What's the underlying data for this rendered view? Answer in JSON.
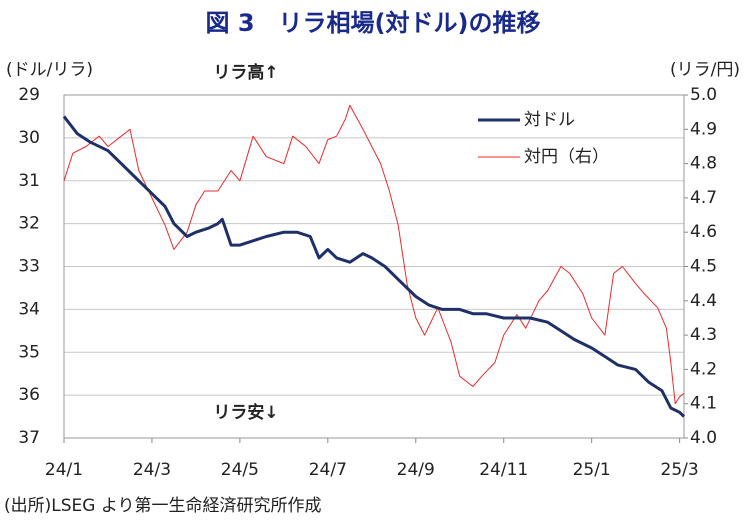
{
  "chart_data": {
    "type": "line",
    "title": "図 3　リラ相場(対ドル)の推移",
    "ylabel": "(ドル/リラ)",
    "y2label": "(リラ/円)",
    "annotations": [
      "リラ高↑",
      "リラ安↓"
    ],
    "source": "(出所)LSEG より第一生命経済研究所作成",
    "xlim": [
      0,
      14.1
    ],
    "xticks": [
      {
        "value": 0,
        "label": "24/1"
      },
      {
        "value": 2,
        "label": "24/3"
      },
      {
        "value": 4,
        "label": "24/5"
      },
      {
        "value": 6,
        "label": "24/7"
      },
      {
        "value": 8,
        "label": "24/9"
      },
      {
        "value": 10,
        "label": "24/11"
      },
      {
        "value": 12,
        "label": "25/1"
      },
      {
        "value": 14,
        "label": "25/3"
      }
    ],
    "ylim": [
      29,
      37
    ],
    "y_inverted": true,
    "yticks": [
      29,
      30,
      31,
      32,
      33,
      34,
      35,
      36,
      37
    ],
    "y2lim": [
      4.0,
      5.0
    ],
    "y2ticks": [
      {
        "value": 4.0,
        "label": "4.0"
      },
      4.1,
      4.2,
      4.3,
      4.4,
      4.5,
      4.6,
      4.7,
      4.8,
      4.9,
      {
        "value": 5.0,
        "label": "5.0"
      }
    ],
    "grid": true,
    "series": [
      {
        "name": "対ドル",
        "color": "#1f3068",
        "width": 3,
        "x": [
          0,
          0.3,
          0.6,
          1,
          1.3,
          1.6,
          2,
          2.3,
          2.5,
          2.8,
          3,
          3.3,
          3.5,
          3.6,
          3.8,
          4,
          4.3,
          4.6,
          5,
          5.3,
          5.6,
          5.8,
          6,
          6.2,
          6.5,
          6.8,
          7,
          7.3,
          7.6,
          8,
          8.3,
          8.6,
          9,
          9.3,
          9.6,
          10,
          10.3,
          10.6,
          11,
          11.3,
          11.6,
          12,
          12.3,
          12.6,
          13,
          13.3,
          13.6,
          13.8,
          14,
          14.1
        ],
        "values": [
          29.5,
          29.9,
          30.1,
          30.3,
          30.6,
          30.9,
          31.3,
          31.6,
          32.0,
          32.3,
          32.2,
          32.1,
          32.0,
          31.9,
          32.5,
          32.5,
          32.4,
          32.3,
          32.2,
          32.2,
          32.3,
          32.8,
          32.6,
          32.8,
          32.9,
          32.7,
          32.8,
          33.0,
          33.3,
          33.7,
          33.9,
          34.0,
          34.0,
          34.1,
          34.1,
          34.2,
          34.2,
          34.2,
          34.3,
          34.5,
          34.7,
          34.9,
          35.1,
          35.3,
          35.4,
          35.7,
          35.9,
          36.3,
          36.4,
          36.5
        ]
      },
      {
        "name": "対円（右）",
        "color": "#ee2a2a",
        "width": 1,
        "axis": "y2",
        "x": [
          0,
          0.2,
          0.5,
          0.8,
          1,
          1.3,
          1.5,
          1.7,
          2,
          2.3,
          2.5,
          2.8,
          3,
          3.2,
          3.5,
          3.8,
          4,
          4.3,
          4.6,
          5,
          5.2,
          5.5,
          5.8,
          6,
          6.2,
          6.4,
          6.5,
          6.8,
          7,
          7.2,
          7.4,
          7.6,
          7.8,
          8,
          8.2,
          8.5,
          8.8,
          9,
          9.3,
          9.5,
          9.8,
          10,
          10.3,
          10.5,
          10.8,
          11,
          11.3,
          11.5,
          11.8,
          12,
          12.3,
          12.5,
          12.7,
          13,
          13.2,
          13.5,
          13.7,
          13.8,
          13.9,
          14,
          14.1
        ],
        "values": [
          4.75,
          4.83,
          4.85,
          4.88,
          4.85,
          4.88,
          4.9,
          4.78,
          4.7,
          4.62,
          4.55,
          4.6,
          4.68,
          4.72,
          4.72,
          4.78,
          4.75,
          4.88,
          4.82,
          4.8,
          4.88,
          4.85,
          4.8,
          4.87,
          4.88,
          4.93,
          4.97,
          4.9,
          4.85,
          4.8,
          4.72,
          4.62,
          4.45,
          4.35,
          4.3,
          4.38,
          4.28,
          4.18,
          4.15,
          4.18,
          4.22,
          4.3,
          4.36,
          4.32,
          4.4,
          4.43,
          4.5,
          4.48,
          4.42,
          4.35,
          4.3,
          4.48,
          4.5,
          4.45,
          4.42,
          4.38,
          4.32,
          4.22,
          4.1,
          4.12,
          4.13
        ]
      }
    ]
  }
}
